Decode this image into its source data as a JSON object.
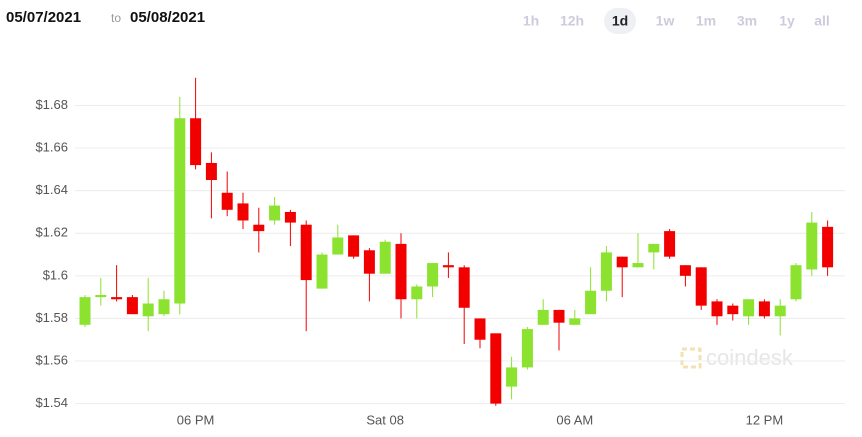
{
  "header": {
    "from": "05/07/2021",
    "to_word": "to",
    "to": "05/08/2021"
  },
  "range_buttons": [
    "1h",
    "12h",
    "1d",
    "1w",
    "1m",
    "3m",
    "1y",
    "all"
  ],
  "selected_range": 2,
  "watermark": "coindesk",
  "chart_data": {
    "type": "candlestick",
    "categories": [
      null,
      null,
      null,
      null,
      null,
      null,
      null,
      "06 PM",
      null,
      null,
      null,
      null,
      null,
      null,
      null,
      null,
      null,
      null,
      null,
      "Sat 08",
      null,
      null,
      null,
      null,
      null,
      null,
      null,
      null,
      null,
      null,
      null,
      "06 AM",
      null,
      null,
      null,
      null,
      null,
      null,
      null,
      null,
      null,
      null,
      null,
      "12 PM",
      null,
      null,
      null,
      null
    ],
    "open": [
      1.577,
      1.59,
      1.59,
      1.59,
      1.581,
      1.582,
      1.587,
      1.674,
      1.653,
      1.639,
      1.634,
      1.624,
      1.626,
      1.63,
      1.624,
      1.594,
      1.61,
      1.619,
      1.612,
      1.601,
      1.615,
      1.589,
      1.595,
      1.605,
      1.604,
      1.58,
      1.573,
      1.548,
      1.557,
      1.577,
      1.584,
      1.577,
      1.582,
      1.593,
      1.609,
      1.604,
      1.611,
      1.621,
      1.605,
      1.604,
      1.588,
      1.586,
      1.581,
      1.588,
      1.581,
      1.589,
      1.603,
      1.623
    ],
    "high": [
      1.591,
      1.599,
      1.605,
      1.591,
      1.599,
      1.593,
      1.684,
      1.693,
      1.658,
      1.649,
      1.639,
      1.632,
      1.637,
      1.631,
      1.626,
      1.611,
      1.624,
      1.619,
      1.613,
      1.617,
      1.62,
      1.596,
      1.606,
      1.611,
      1.605,
      1.58,
      1.573,
      1.562,
      1.576,
      1.589,
      1.584,
      1.584,
      1.604,
      1.614,
      1.609,
      1.62,
      1.615,
      1.622,
      1.605,
      1.604,
      1.589,
      1.587,
      1.589,
      1.589,
      1.589,
      1.606,
      1.63,
      1.626
    ],
    "low": [
      1.576,
      1.586,
      1.588,
      1.582,
      1.574,
      1.581,
      1.582,
      1.65,
      1.627,
      1.628,
      1.622,
      1.611,
      1.624,
      1.614,
      1.574,
      1.594,
      1.61,
      1.608,
      1.588,
      1.601,
      1.58,
      1.58,
      1.59,
      1.599,
      1.568,
      1.566,
      1.539,
      1.542,
      1.556,
      1.577,
      1.565,
      1.577,
      1.582,
      1.588,
      1.59,
      1.604,
      1.603,
      1.608,
      1.595,
      1.584,
      1.577,
      1.579,
      1.577,
      1.58,
      1.572,
      1.588,
      1.6,
      1.6
    ],
    "close": [
      1.59,
      1.591,
      1.589,
      1.582,
      1.587,
      1.589,
      1.674,
      1.652,
      1.645,
      1.631,
      1.626,
      1.621,
      1.633,
      1.625,
      1.598,
      1.61,
      1.618,
      1.609,
      1.601,
      1.616,
      1.589,
      1.595,
      1.606,
      1.604,
      1.585,
      1.57,
      1.54,
      1.557,
      1.575,
      1.584,
      1.578,
      1.58,
      1.593,
      1.611,
      1.604,
      1.606,
      1.615,
      1.609,
      1.6,
      1.586,
      1.581,
      1.582,
      1.589,
      1.581,
      1.586,
      1.605,
      1.625,
      1.604
    ],
    "up_color": "#8be22f",
    "down_color": "#f20000",
    "ylim": [
      1.537,
      1.699
    ],
    "yticks": [
      {
        "value": 1.54,
        "label": "$1.54"
      },
      {
        "value": 1.56,
        "label": "$1.56"
      },
      {
        "value": 1.58,
        "label": "$1.58"
      },
      {
        "value": 1.6,
        "label": "$1.6"
      },
      {
        "value": 1.62,
        "label": "$1.62"
      },
      {
        "value": 1.64,
        "label": "$1.64"
      },
      {
        "value": 1.66,
        "label": "$1.66"
      },
      {
        "value": 1.68,
        "label": "$1.68"
      }
    ],
    "grid": true
  }
}
